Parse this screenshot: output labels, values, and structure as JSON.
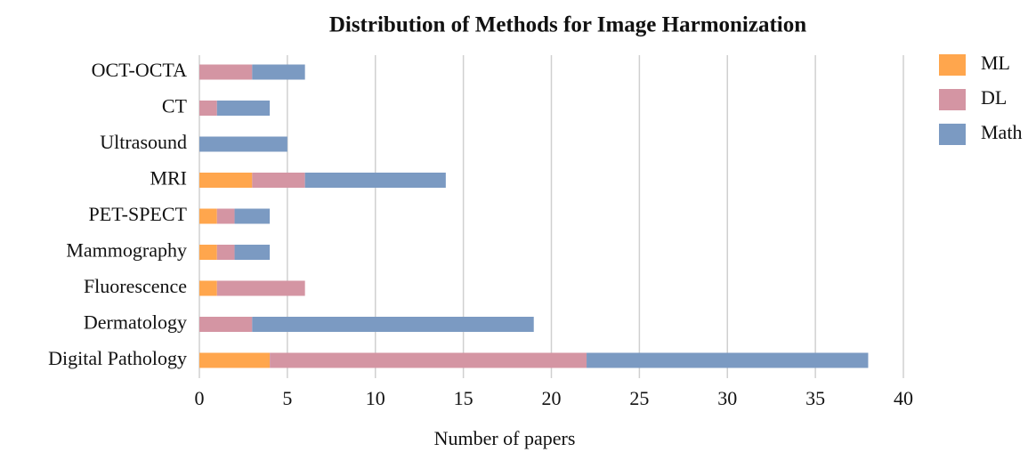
{
  "chart_data": {
    "type": "bar",
    "orientation": "horizontal",
    "stacked": true,
    "title": "Distribution of Methods for Image Harmonization",
    "xlabel": "Number of papers",
    "categories": [
      "OCT-OCTA",
      "CT",
      "Ultrasound",
      "MRI",
      "PET-SPECT",
      "Mammography",
      "Fluorescence",
      "Dermatology",
      "Digital Pathology"
    ],
    "series": [
      {
        "name": "ML",
        "color": "#ffa64d",
        "values": [
          0,
          0,
          0,
          3,
          1,
          1,
          1,
          0,
          4
        ]
      },
      {
        "name": "DL",
        "color": "#d495a3",
        "values": [
          3,
          1,
          0,
          3,
          1,
          1,
          5,
          3,
          18
        ]
      },
      {
        "name": "Math",
        "color": "#7b9ac2",
        "values": [
          3,
          3,
          5,
          8,
          2,
          2,
          0,
          16,
          16
        ]
      }
    ],
    "xlim": [
      0,
      40
    ],
    "xticks": [
      0,
      5,
      10,
      15,
      20,
      25,
      30,
      35,
      40
    ],
    "grid": true,
    "legend": "upper right"
  }
}
